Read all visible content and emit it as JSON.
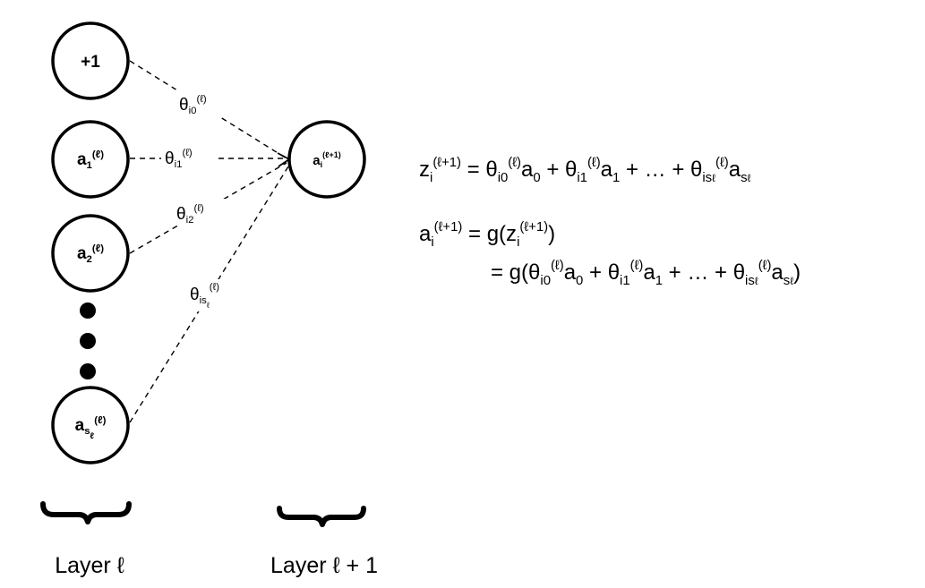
{
  "nodes": {
    "bias": "+1",
    "a1_base": "a",
    "a1_sub": "1",
    "a1_sup": "(ℓ)",
    "a2_base": "a",
    "a2_sub": "2",
    "a2_sup": "(ℓ)",
    "as_base": "a",
    "as_sub": "s",
    "as_subsub": "ℓ",
    "as_sup": "(ℓ)",
    "ai_base": "a",
    "ai_sub": "i",
    "ai_sup": "(ℓ+1)"
  },
  "weights": {
    "theta": "θ",
    "w0_sub": "i0",
    "w1_sub": "i1",
    "w2_sub": "i2",
    "ws_sub": "is",
    "ws_subsub": "ℓ",
    "sup": "(ℓ)"
  },
  "layers": {
    "left": "Layer ℓ",
    "right": "Layer ℓ + 1"
  },
  "equations": {
    "eq1": {
      "lhs_base": "z",
      "lhs_sub": "i",
      "lhs_sup": "(ℓ+1)",
      "rhs_prefix": " = ",
      "t0": "θ",
      "t0_sub": "i0",
      "t0_sup": "(ℓ)",
      "a0": "a",
      "a0_sub": "0",
      "plus1": " + ",
      "t1": "θ",
      "t1_sub": "i1",
      "t1_sup": "(ℓ)",
      "a1": "a",
      "a1_sub": "1",
      "plus2": " + … + ",
      "ts": "θ",
      "ts_sub": "is",
      "ts_subsub": "ℓ",
      "ts_sup": "(ℓ)",
      "as": "a",
      "as_sub": "s",
      "as_subsub": "ℓ"
    },
    "eq2": {
      "lhs_base": "a",
      "lhs_sub": "i",
      "lhs_sup": "(ℓ+1)",
      "rhs": " = g(z",
      "rhs_sub": "i",
      "rhs_sup": "(ℓ+1)",
      "rhs_close": ")"
    },
    "eq3": {
      "prefix": "= g(",
      "t0": "θ",
      "t0_sub": "i0",
      "t0_sup": "(ℓ)",
      "a0": "a",
      "a0_sub": "0",
      "plus1": " + ",
      "t1": "θ",
      "t1_sub": "i1",
      "t1_sup": "(ℓ)",
      "a1": "a",
      "a1_sub": "1",
      "plus2": " + … + ",
      "ts": "θ",
      "ts_sub": "is",
      "ts_subsub": "ℓ",
      "ts_sup": "(ℓ)",
      "as": "a",
      "as_sub": "s",
      "as_subsub": "ℓ",
      "close": ")"
    }
  }
}
